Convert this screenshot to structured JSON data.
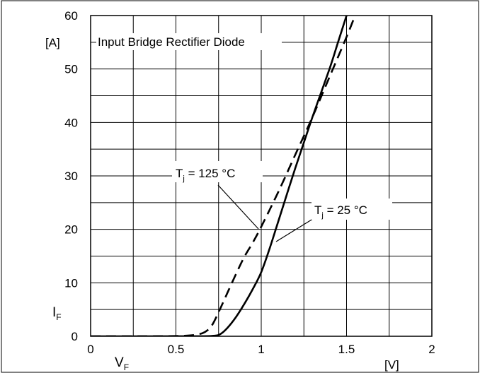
{
  "chart_data": {
    "type": "line",
    "title": "Input Bridge Rectifier Diode",
    "xlabel": "V",
    "xlabel_sub": "F",
    "xunit": "[V]",
    "ylabel": "I",
    "ylabel_sub": "F",
    "yunit": "[A]",
    "xlim": [
      0,
      2
    ],
    "ylim": [
      0,
      60
    ],
    "x_ticks": [
      "0",
      "0.5",
      "1",
      "1.5",
      "2"
    ],
    "y_ticks": [
      "0",
      "10",
      "20",
      "30",
      "40",
      "50",
      "60"
    ],
    "grid": true,
    "series": [
      {
        "name": "Tj = 125 °C",
        "label_main": "T",
        "label_sub": "j",
        "label_rest": " = 125 °C",
        "style": "dashed",
        "color": "#000000",
        "points": [
          [
            0,
            0
          ],
          [
            0.4,
            0.02
          ],
          [
            0.55,
            0.1
          ],
          [
            0.62,
            0.3
          ],
          [
            0.67,
            0.8
          ],
          [
            0.71,
            2
          ],
          [
            0.75,
            4.5
          ],
          [
            0.8,
            8
          ],
          [
            0.85,
            11.5
          ],
          [
            0.9,
            14.8
          ],
          [
            0.95,
            17.5
          ],
          [
            1.0,
            20.5
          ],
          [
            1.1,
            27
          ],
          [
            1.2,
            34
          ],
          [
            1.3,
            41
          ],
          [
            1.4,
            48.5
          ],
          [
            1.5,
            56
          ],
          [
            1.55,
            60
          ]
        ]
      },
      {
        "name": "Tj = 25 °C",
        "label_main": "T",
        "label_sub": "j",
        "label_rest": " = 25 °C",
        "style": "solid",
        "color": "#000000",
        "points": [
          [
            0,
            0
          ],
          [
            0.6,
            0.01
          ],
          [
            0.72,
            0.1
          ],
          [
            0.76,
            0.4
          ],
          [
            0.8,
            1.5
          ],
          [
            0.85,
            3.5
          ],
          [
            0.9,
            6
          ],
          [
            0.95,
            8.8
          ],
          [
            1.0,
            12
          ],
          [
            1.05,
            16.5
          ],
          [
            1.1,
            21.5
          ],
          [
            1.2,
            31.5
          ],
          [
            1.3,
            41
          ],
          [
            1.4,
            50
          ],
          [
            1.45,
            55
          ],
          [
            1.5,
            60
          ]
        ]
      }
    ]
  }
}
